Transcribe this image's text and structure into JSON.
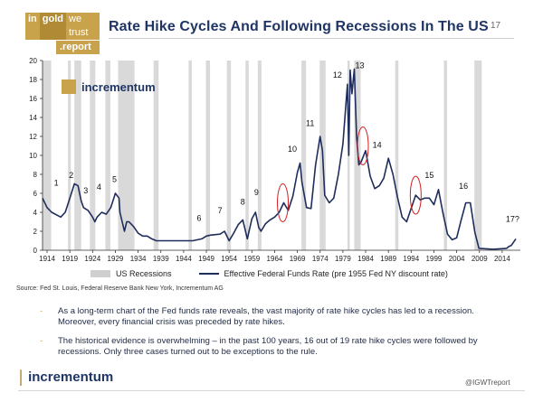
{
  "header": {
    "logo_in": "in",
    "logo_gold": "gold",
    "logo_we_trust": "we trust",
    "logo_report": ".report",
    "title": "Rate Hike Cycles And Following Recessions In The US",
    "page_number": "17"
  },
  "chart_data": {
    "type": "line",
    "xlim": [
      1913,
      2018
    ],
    "ylim": [
      0,
      20
    ],
    "y_ticks": [
      "0",
      "2",
      "4",
      "6",
      "8",
      "10",
      "12",
      "14",
      "16",
      "18",
      "20"
    ],
    "x_ticks": [
      "1914",
      "1919",
      "1924",
      "1929",
      "1934",
      "1939",
      "1944",
      "1949",
      "1954",
      "1959",
      "1964",
      "1969",
      "1974",
      "1979",
      "1984",
      "1989",
      "1994",
      "1999",
      "2004",
      "2009",
      "2014"
    ],
    "watermark": "incrementum",
    "series": [
      {
        "name": "Effective Federal Funds Rate (pre 1955 Fed NY discount rate)",
        "color": "#1f2d5c",
        "x": [
          1913,
          1914,
          1915,
          1917,
          1918,
          1919,
          1920,
          1920.8,
          1921.5,
          1922,
          1923,
          1924,
          1924.5,
          1925,
          1926,
          1927,
          1928,
          1929,
          1929.8,
          1930,
          1930.5,
          1931,
          1931.5,
          1932,
          1933,
          1934,
          1935,
          1936,
          1937,
          1938,
          1940,
          1942,
          1945,
          1946,
          1948,
          1949,
          1950,
          1952,
          1953,
          1954,
          1955,
          1956,
          1957,
          1958,
          1959,
          1959.8,
          1960.5,
          1961,
          1962,
          1963,
          1964,
          1965,
          1966,
          1967,
          1968,
          1969,
          1969.6,
          1970,
          1971,
          1972,
          1973,
          1974,
          1974.5,
          1975,
          1976,
          1977,
          1978,
          1979,
          1980,
          1980.3,
          1980.6,
          1981,
          1981.5,
          1982,
          1982.5,
          1983,
          1984,
          1985,
          1986,
          1987,
          1988,
          1989,
          1990,
          1991,
          1992,
          1993,
          1994,
          1995,
          1996,
          1997,
          1998,
          1999,
          2000,
          2001,
          2002,
          2003,
          2004,
          2005,
          2006,
          2007,
          2008,
          2008.9,
          2009,
          2012,
          2015,
          2015.5,
          2016,
          2017
        ],
        "values": [
          5.5,
          4.5,
          4.0,
          3.5,
          4.0,
          5.5,
          7.0,
          6.8,
          5.2,
          4.5,
          4.2,
          3.5,
          3.0,
          3.5,
          4.0,
          3.8,
          4.5,
          6.0,
          5.5,
          4.0,
          3.0,
          2.0,
          3.0,
          3.0,
          2.5,
          1.8,
          1.5,
          1.5,
          1.2,
          1.0,
          1.0,
          1.0,
          1.0,
          1.0,
          1.2,
          1.5,
          1.6,
          1.7,
          2.0,
          1.0,
          1.8,
          2.7,
          3.2,
          1.2,
          3.3,
          4.0,
          2.4,
          2.0,
          2.8,
          3.2,
          3.5,
          4.0,
          5.0,
          4.2,
          5.7,
          8.2,
          9.2,
          7.2,
          4.5,
          4.4,
          9.0,
          12.0,
          10.5,
          5.8,
          5.0,
          5.5,
          8.0,
          11.2,
          17.5,
          10.0,
          19.0,
          16.5,
          19.1,
          12.0,
          9.0,
          9.3,
          10.5,
          7.8,
          6.5,
          6.8,
          7.6,
          9.7,
          8.0,
          5.6,
          3.5,
          3.0,
          4.4,
          5.8,
          5.3,
          5.5,
          5.5,
          4.8,
          6.4,
          3.9,
          1.7,
          1.1,
          1.3,
          3.2,
          5.0,
          5.0,
          1.9,
          0.2,
          0.2,
          0.1,
          0.2,
          0.4,
          0.5,
          1.2
        ]
      }
    ],
    "recessions": [
      [
        1913.0,
        1914.9
      ],
      [
        1918.6,
        1919.2
      ],
      [
        1920.0,
        1921.5
      ],
      [
        1923.4,
        1924.6
      ],
      [
        1926.8,
        1927.9
      ],
      [
        1929.6,
        1933.2
      ],
      [
        1937.4,
        1938.5
      ],
      [
        1945.1,
        1945.8
      ],
      [
        1948.9,
        1949.8
      ],
      [
        1953.5,
        1954.4
      ],
      [
        1957.6,
        1958.3
      ],
      [
        1960.3,
        1961.1
      ],
      [
        1969.9,
        1970.9
      ],
      [
        1973.9,
        1975.2
      ],
      [
        1980.0,
        1980.5
      ],
      [
        1981.5,
        1982.9
      ],
      [
        1990.5,
        1991.2
      ],
      [
        2001.2,
        2001.9
      ],
      [
        2007.9,
        2009.5
      ]
    ],
    "highlights": [
      [
        1965.8,
        5.0
      ],
      [
        1983.4,
        11.0
      ],
      [
        1995.0,
        5.8
      ]
    ],
    "annotations": [
      {
        "label": "1",
        "x": 1916.0,
        "y": 6.8
      },
      {
        "label": "2",
        "x": 1919.3,
        "y": 7.6
      },
      {
        "label": "3",
        "x": 1922.5,
        "y": 6.0
      },
      {
        "label": "4",
        "x": 1925.4,
        "y": 6.4
      },
      {
        "label": "5",
        "x": 1928.8,
        "y": 7.2
      },
      {
        "label": "6",
        "x": 1947.4,
        "y": 3.1
      },
      {
        "label": "7",
        "x": 1952.0,
        "y": 3.9
      },
      {
        "label": "8",
        "x": 1957.0,
        "y": 4.8
      },
      {
        "label": "9",
        "x": 1960.0,
        "y": 5.8
      },
      {
        "label": "10",
        "x": 1967.9,
        "y": 10.4
      },
      {
        "label": "11",
        "x": 1971.8,
        "y": 13.1
      },
      {
        "label": "12",
        "x": 1977.8,
        "y": 18.2
      },
      {
        "label": "13",
        "x": 1982.7,
        "y": 19.2
      },
      {
        "label": "14",
        "x": 1986.5,
        "y": 10.8
      },
      {
        "label": "15",
        "x": 1998.0,
        "y": 7.6
      },
      {
        "label": "16",
        "x": 2005.5,
        "y": 6.5
      },
      {
        "label": "17?",
        "x": 2016.3,
        "y": 3.0
      }
    ]
  },
  "legend": {
    "recessions": "US Recessions",
    "rate": "Effective Federal Funds Rate (pre 1955 Fed NY discount rate)"
  },
  "source": "Source: Fed St. Louis, Federal Reserve Bank New York, Incrementum AG",
  "bullets": [
    "As a long-term chart of the Fed funds rate reveals, the vast majority of rate hike cycles has led to a recession. Moreover, every financial crisis was preceded by rate hikes.",
    "The historical evidence is overwhelming – in the past 100 years, 16 out of 19 rate hike cycles were followed by recessions. Only three cases turned out to be exceptions to the rule."
  ],
  "footer": {
    "logo_text": "incrementum",
    "handle": "@IGWTreport"
  },
  "colors": {
    "navy": "#1f2d5c",
    "gold": "#c9a24c",
    "recession_band": "#d9d9d9",
    "highlight": "#d21f1f"
  }
}
